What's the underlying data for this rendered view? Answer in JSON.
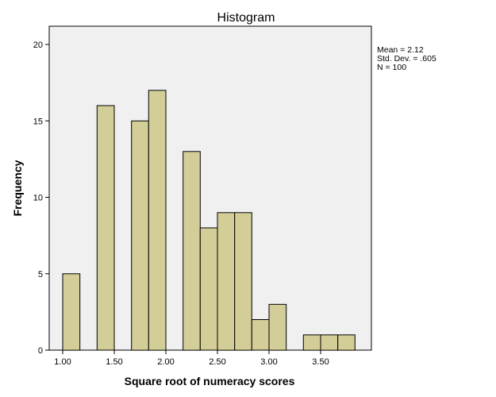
{
  "chart_data": {
    "type": "bar",
    "subtype": "histogram",
    "title": "Histogram",
    "xlabel": "Square root of numeracy scores",
    "ylabel": "Frequency",
    "xlim": [
      0.87,
      3.98
    ],
    "ylim": [
      0,
      21.2
    ],
    "xticks": [
      "1.00",
      "1.50",
      "2.00",
      "2.50",
      "3.00",
      "3.50"
    ],
    "yticks": [
      "0",
      "5",
      "10",
      "15",
      "20"
    ],
    "bin_width": 0.1667,
    "bins": [
      {
        "start": 1.0,
        "end": 1.167,
        "count": 5
      },
      {
        "start": 1.167,
        "end": 1.333,
        "count": 0
      },
      {
        "start": 1.333,
        "end": 1.5,
        "count": 16
      },
      {
        "start": 1.5,
        "end": 1.667,
        "count": 0
      },
      {
        "start": 1.667,
        "end": 1.833,
        "count": 15
      },
      {
        "start": 1.833,
        "end": 2.0,
        "count": 17
      },
      {
        "start": 2.0,
        "end": 2.167,
        "count": 0
      },
      {
        "start": 2.167,
        "end": 2.333,
        "count": 13
      },
      {
        "start": 2.333,
        "end": 2.5,
        "count": 8
      },
      {
        "start": 2.5,
        "end": 2.667,
        "count": 9
      },
      {
        "start": 2.667,
        "end": 2.833,
        "count": 9
      },
      {
        "start": 2.833,
        "end": 3.0,
        "count": 2
      },
      {
        "start": 3.0,
        "end": 3.167,
        "count": 3
      },
      {
        "start": 3.167,
        "end": 3.333,
        "count": 0
      },
      {
        "start": 3.333,
        "end": 3.5,
        "count": 1
      },
      {
        "start": 3.5,
        "end": 3.667,
        "count": 1
      },
      {
        "start": 3.667,
        "end": 3.833,
        "count": 1
      }
    ],
    "statistics": {
      "mean_label": "Mean = 2.12",
      "sd_label": "Std. Dev. = .605",
      "n_label": "N = 100"
    },
    "grid": false,
    "legend": "none",
    "colors": {
      "bar_fill": "#d3ce97",
      "bar_stroke": "#000000",
      "plot_bg": "#f0f0f0",
      "page_bg": "#ffffff"
    }
  }
}
